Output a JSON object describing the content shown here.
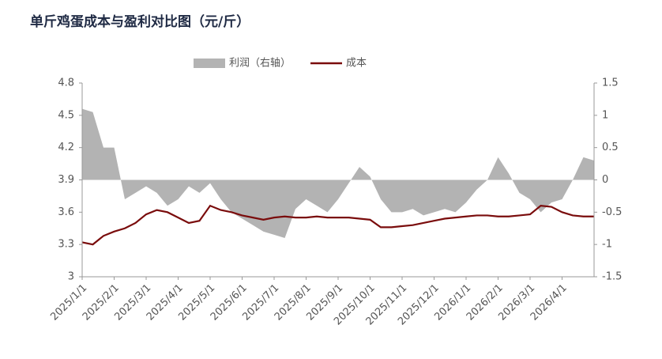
{
  "chart_data": {
    "type": "line-area",
    "title": "单斤鸡蛋成本与盈利对比图（元/斤）",
    "categories": [
      "2025/1/1",
      null,
      null,
      "2025/2/1",
      null,
      null,
      "2025/3/1",
      null,
      null,
      "2025/4/1",
      null,
      null,
      "2025/5/1",
      null,
      null,
      "2025/6/1",
      null,
      null,
      "2025/7/1",
      null,
      null,
      "2025/8/1",
      null,
      null,
      "2025/9/1",
      null,
      null,
      "2025/10/1",
      null,
      null,
      "2025/11/1",
      null,
      null,
      "2025/12/1",
      null,
      null,
      "2026/1/1",
      null,
      null,
      "2026/2/1",
      null,
      null,
      "2026/3/1",
      null,
      null,
      "2026/4/1",
      null,
      null,
      null
    ],
    "series": [
      {
        "name": "利润（右轴）",
        "color": "#b3b3b3",
        "axis": "y2",
        "kind": "area",
        "values": [
          1.1,
          1.05,
          0.5,
          0.5,
          -0.3,
          -0.2,
          -0.1,
          -0.2,
          -0.4,
          -0.3,
          -0.1,
          -0.2,
          -0.05,
          -0.3,
          -0.5,
          -0.6,
          -0.7,
          -0.8,
          -0.85,
          -0.9,
          -0.45,
          -0.3,
          -0.4,
          -0.5,
          -0.3,
          -0.05,
          0.2,
          0.05,
          -0.3,
          -0.5,
          -0.5,
          -0.45,
          -0.55,
          -0.5,
          -0.45,
          -0.5,
          -0.35,
          -0.15,
          0.0,
          0.35,
          0.1,
          -0.2,
          -0.3,
          -0.5,
          -0.35,
          -0.3,
          0.0,
          0.35,
          0.3
        ]
      },
      {
        "name": "成本",
        "color": "#7a0c0c",
        "kind": "line",
        "values": [
          3.32,
          3.3,
          3.38,
          3.42,
          3.45,
          3.5,
          3.58,
          3.62,
          3.6,
          3.55,
          3.5,
          3.52,
          3.66,
          3.62,
          3.6,
          3.57,
          3.55,
          3.53,
          3.55,
          3.56,
          3.55,
          3.55,
          3.56,
          3.55,
          3.55,
          3.55,
          3.54,
          3.53,
          3.46,
          3.46,
          3.47,
          3.48,
          3.5,
          3.52,
          3.54,
          3.55,
          3.56,
          3.57,
          3.57,
          3.56,
          3.56,
          3.57,
          3.58,
          3.66,
          3.65,
          3.6,
          3.57,
          3.56,
          3.56
        ]
      }
    ],
    "ylim": [
      3,
      4.8
    ],
    "yticks": [
      3,
      3.3,
      3.6,
      3.9,
      4.2,
      4.5,
      4.8
    ],
    "y2lim": [
      -1.5,
      1.5
    ],
    "y2ticks": [
      -1.5,
      -1,
      -0.5,
      0,
      0.5,
      1,
      1.5
    ],
    "grid": false
  }
}
